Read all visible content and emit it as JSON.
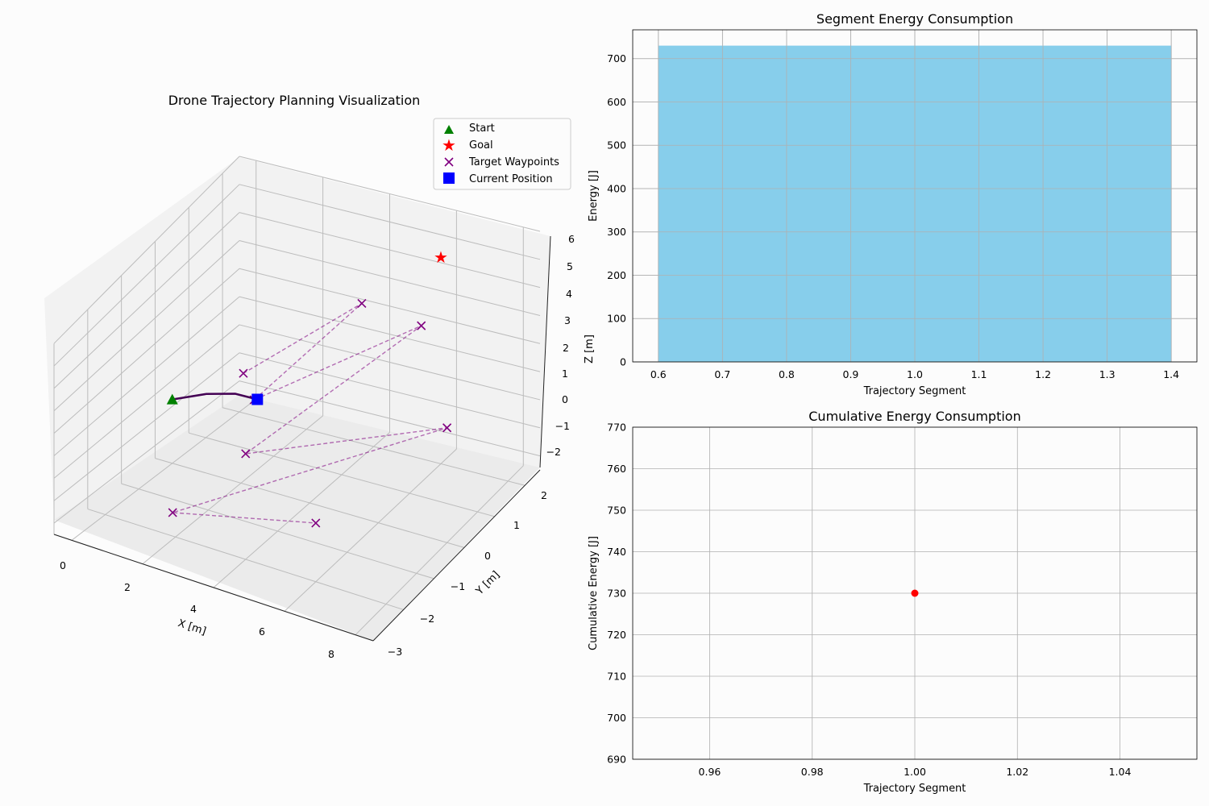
{
  "chart_data": [
    {
      "type": "scatter",
      "projection": "3d",
      "title": "Drone Trajectory Planning Visualization",
      "xlabel": "X [m]",
      "ylabel": "Y [m]",
      "zlabel": "Z [m]",
      "xlim": [
        -0.5,
        8.5
      ],
      "ylim": [
        -3,
        2.5
      ],
      "zlim": [
        -2.5,
        6
      ],
      "xticks": [
        "0",
        "2",
        "4",
        "6",
        "8"
      ],
      "yticks": [
        "−3",
        "−2",
        "−1",
        "0",
        "1",
        "2"
      ],
      "zticks": [
        "−2",
        "−1",
        "0",
        "1",
        "2",
        "3",
        "4",
        "5",
        "6"
      ],
      "grid": true,
      "legend_position": "upper right",
      "legend": [
        "Start",
        "Goal",
        "Target Waypoints",
        "Current Position"
      ],
      "colors": {
        "start": "#008000",
        "goal": "#ff0000",
        "waypoints": "#800080",
        "current": "#0000ff",
        "trajectory": "#440154"
      },
      "start": [
        0,
        0,
        0
      ],
      "goal": [
        6,
        2,
        5
      ],
      "current": [
        2,
        0.5,
        0.2
      ],
      "trajectory": [
        [
          0,
          0,
          0
        ],
        [
          0.7,
          0.3,
          0.15
        ],
        [
          1.4,
          0.45,
          0.25
        ],
        [
          2,
          0.5,
          0.2
        ]
      ],
      "waypoints": [
        [
          1.3,
          0.8,
          0.6
        ],
        [
          4.5,
          1.1,
          4.0
        ],
        [
          3.6,
          -1.3,
          3.1
        ],
        [
          6.8,
          0.5,
          4.8
        ],
        [
          4.0,
          -2.0,
          2.0
        ],
        [
          8.0,
          0.0,
          2.0
        ],
        [
          2.2,
          -2.3,
          -1.0
        ],
        [
          6.0,
          -2.0,
          0.0
        ]
      ],
      "waypoint_path_order": [
        0,
        1,
        2,
        3,
        4,
        5,
        6,
        7
      ]
    },
    {
      "type": "bar",
      "title": "Segment Energy Consumption",
      "xlabel": "Trajectory Segment",
      "ylabel": "Energy [J]",
      "x": [
        1
      ],
      "values": [
        730
      ],
      "bar_width": 0.8,
      "xlim": [
        0.56,
        1.44
      ],
      "ylim": [
        0,
        766.5
      ],
      "xticks": [
        "0.6",
        "0.7",
        "0.8",
        "0.9",
        "1.0",
        "1.1",
        "1.2",
        "1.3",
        "1.4"
      ],
      "yticks": [
        "0",
        "100",
        "200",
        "300",
        "400",
        "500",
        "600",
        "700"
      ],
      "grid": true,
      "bar_color": "#87ceeb"
    },
    {
      "type": "line",
      "title": "Cumulative Energy Consumption",
      "xlabel": "Trajectory Segment",
      "ylabel": "Cumulative Energy [J]",
      "x": [
        1
      ],
      "values": [
        730
      ],
      "xlim": [
        0.945,
        1.055
      ],
      "ylim": [
        690,
        770
      ],
      "xticks": [
        "0.96",
        "0.98",
        "1.00",
        "1.02",
        "1.04"
      ],
      "yticks": [
        "690",
        "700",
        "710",
        "720",
        "730",
        "740",
        "750",
        "760",
        "770"
      ],
      "grid": true,
      "marker_color": "#ff0000"
    }
  ]
}
